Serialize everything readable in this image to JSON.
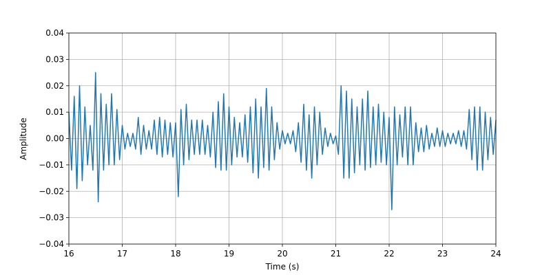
{
  "chart_data": {
    "type": "line",
    "xlabel": "Time (s)",
    "ylabel": "Amplitude",
    "xlim": [
      16,
      24
    ],
    "xticks": [
      16,
      17,
      18,
      19,
      20,
      21,
      22,
      23,
      24
    ],
    "ylim": [
      -0.04,
      0.04
    ],
    "yticks": [
      {
        "value": -0.04,
        "label": "−0.04"
      },
      {
        "value": -0.03,
        "label": "−0.03"
      },
      {
        "value": -0.02,
        "label": "−0.02"
      },
      {
        "value": -0.01,
        "label": "−0.01"
      },
      {
        "value": 0,
        "label": "0.00"
      },
      0.01,
      0.02,
      0.03,
      0.04
    ],
    "grid": true,
    "x": [
      16,
      16.05,
      16.1,
      16.15,
      16.2,
      16.25,
      16.3,
      16.35,
      16.4,
      16.45,
      16.5,
      16.55,
      16.6,
      16.65,
      16.7,
      16.75,
      16.8,
      16.85,
      16.9,
      16.95,
      17,
      17.05,
      17.1,
      17.15,
      17.2,
      17.25,
      17.3,
      17.35,
      17.4,
      17.45,
      17.5,
      17.55,
      17.6,
      17.65,
      17.7,
      17.75,
      17.8,
      17.85,
      17.9,
      17.95,
      18,
      18.05,
      18.1,
      18.15,
      18.2,
      18.25,
      18.3,
      18.35,
      18.4,
      18.45,
      18.5,
      18.55,
      18.6,
      18.65,
      18.7,
      18.75,
      18.8,
      18.85,
      18.9,
      18.95,
      19,
      19.05,
      19.1,
      19.15,
      19.2,
      19.25,
      19.3,
      19.35,
      19.4,
      19.45,
      19.5,
      19.55,
      19.6,
      19.65,
      19.7,
      19.75,
      19.8,
      19.85,
      19.9,
      19.95,
      20,
      20.05,
      20.1,
      20.15,
      20.2,
      20.25,
      20.3,
      20.35,
      20.4,
      20.45,
      20.5,
      20.55,
      20.6,
      20.65,
      20.7,
      20.75,
      20.8,
      20.85,
      20.9,
      20.95,
      21,
      21.05,
      21.1,
      21.15,
      21.2,
      21.25,
      21.3,
      21.35,
      21.4,
      21.45,
      21.5,
      21.55,
      21.6,
      21.65,
      21.7,
      21.75,
      21.8,
      21.85,
      21.9,
      21.95,
      22,
      22.05,
      22.1,
      22.15,
      22.2,
      22.25,
      22.3,
      22.35,
      22.4,
      22.45,
      22.5,
      22.55,
      22.6,
      22.65,
      22.7,
      22.75,
      22.8,
      22.85,
      22.9,
      22.95,
      23,
      23.05,
      23.1,
      23.15,
      23.2,
      23.25,
      23.3,
      23.35,
      23.4,
      23.45,
      23.5,
      23.55,
      23.6,
      23.65,
      23.7,
      23.75,
      23.8,
      23.85,
      23.9,
      23.95,
      24
    ],
    "series": [
      {
        "color": "#1f77b4",
        "values": [
          0.01,
          -0.012,
          0.016,
          -0.019,
          0.02,
          -0.016,
          0.012,
          -0.01,
          0.005,
          -0.012,
          0.025,
          -0.024,
          0.017,
          -0.012,
          0.013,
          -0.01,
          0.017,
          -0.01,
          0.011,
          -0.008,
          0.005,
          -0.004,
          0.002,
          -0.003,
          0.002,
          -0.004,
          0.008,
          -0.006,
          0.005,
          -0.004,
          0.003,
          -0.004,
          0.007,
          -0.006,
          0.008,
          -0.007,
          0.007,
          -0.006,
          0.006,
          -0.007,
          0.006,
          -0.022,
          0.011,
          -0.01,
          0.013,
          -0.008,
          0.007,
          -0.006,
          0.007,
          -0.006,
          0.007,
          -0.006,
          0.005,
          -0.007,
          0.01,
          -0.011,
          0.014,
          -0.012,
          0.017,
          -0.012,
          0.012,
          -0.01,
          0.008,
          -0.007,
          0.006,
          -0.007,
          0.009,
          -0.009,
          0.012,
          -0.013,
          0.015,
          -0.015,
          0.012,
          -0.011,
          0.019,
          -0.012,
          0.012,
          -0.008,
          0.006,
          -0.004,
          0.003,
          -0.002,
          0.002,
          -0.002,
          0.003,
          -0.005,
          0.006,
          -0.009,
          0.013,
          -0.012,
          0.009,
          -0.015,
          0.012,
          -0.01,
          0.01,
          -0.006,
          0.004,
          -0.003,
          0.002,
          -0.002,
          0.001,
          -0.006,
          0.02,
          -0.015,
          0.018,
          -0.015,
          0.015,
          -0.013,
          0.012,
          -0.01,
          0.015,
          -0.012,
          0.018,
          -0.011,
          0.012,
          -0.01,
          0.013,
          -0.009,
          0.01,
          -0.01,
          0.008,
          -0.027,
          0.012,
          -0.01,
          0.009,
          -0.007,
          0.012,
          -0.01,
          0.012,
          -0.01,
          0.006,
          -0.005,
          0.004,
          -0.005,
          0.005,
          -0.004,
          0.002,
          -0.003,
          0.004,
          -0.003,
          0.003,
          -0.003,
          0.002,
          -0.002,
          0.002,
          -0.002,
          0.003,
          -0.003,
          0.003,
          -0.004,
          0.011,
          -0.008,
          0.012,
          -0.012,
          0.012,
          -0.012,
          0.01,
          -0.008,
          0.008,
          -0.006,
          0.007
        ]
      }
    ]
  }
}
